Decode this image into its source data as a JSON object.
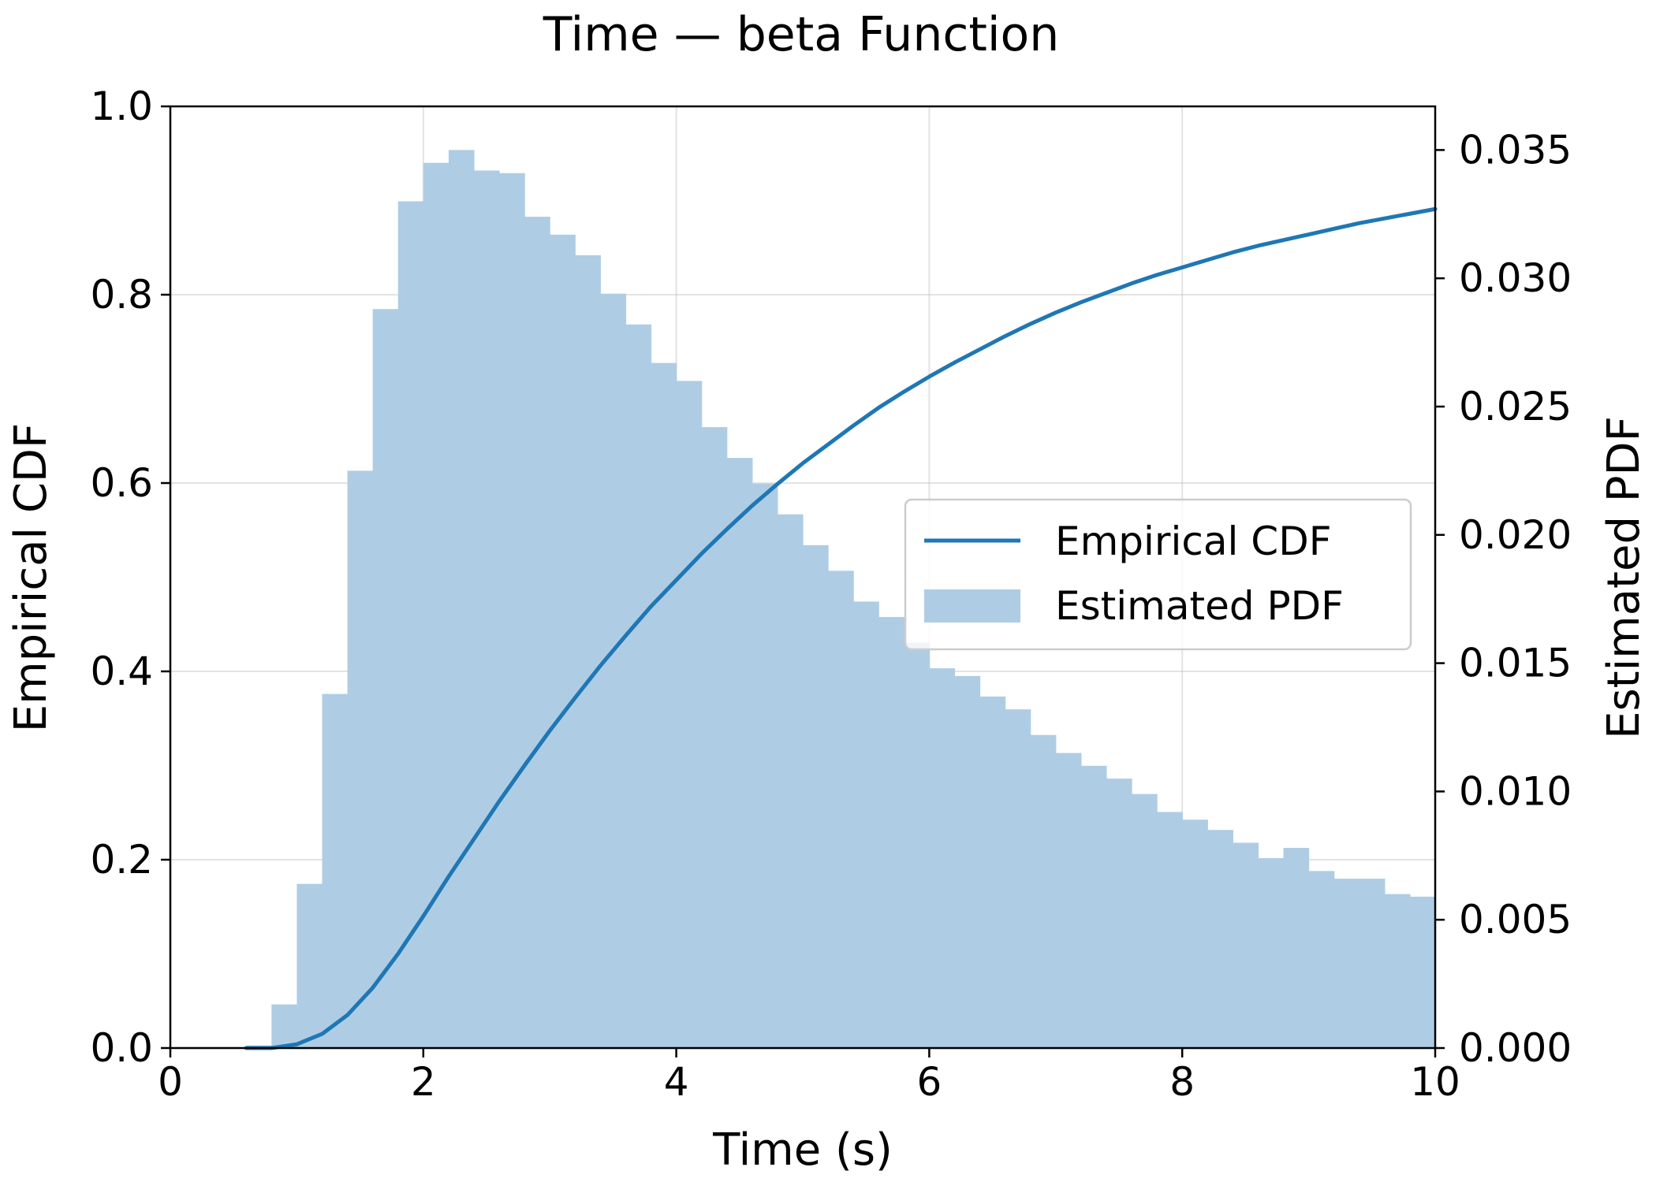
{
  "chart_data": {
    "type": "histogram+line",
    "title": "Time — beta Function",
    "xlabel": "Time (s)",
    "ylabel_left": "Empirical CDF",
    "ylabel_right": "Estimated PDF",
    "xlim": [
      0,
      10
    ],
    "ylim_left": [
      0,
      1.0
    ],
    "ylim_right": [
      0,
      0.0367
    ],
    "xticks": [
      0,
      2,
      4,
      6,
      8,
      10
    ],
    "xtick_labels": [
      "0",
      "2",
      "4",
      "6",
      "8",
      "10"
    ],
    "yticks_left": [
      0.0,
      0.2,
      0.4,
      0.6,
      0.8,
      1.0
    ],
    "ytick_labels_left": [
      "0.0",
      "0.2",
      "0.4",
      "0.6",
      "0.8",
      "1.0"
    ],
    "yticks_right": [
      0.0,
      0.005,
      0.01,
      0.015,
      0.02,
      0.025,
      0.03,
      0.035
    ],
    "ytick_labels_right": [
      "0.000",
      "0.005",
      "0.010",
      "0.015",
      "0.020",
      "0.025",
      "0.030",
      "0.035"
    ],
    "grid": true,
    "legend_position": "center-right",
    "legend": [
      {
        "label": "Empirical CDF",
        "kind": "line",
        "color": "#1f77b4"
      },
      {
        "label": "Estimated PDF",
        "kind": "patch",
        "color": "#aecde4"
      }
    ],
    "line_color": "#1f77b4",
    "bar_color": "#aecde4",
    "histogram": {
      "bin_start": 0.6,
      "bin_width": 0.2,
      "values": [
        0.0001,
        0.0017,
        0.0064,
        0.0138,
        0.0225,
        0.0288,
        0.033,
        0.0345,
        0.035,
        0.0342,
        0.0341,
        0.0324,
        0.0317,
        0.0309,
        0.0294,
        0.0282,
        0.0267,
        0.026,
        0.0242,
        0.023,
        0.022,
        0.0208,
        0.0196,
        0.0186,
        0.0174,
        0.0168,
        0.0158,
        0.0148,
        0.0145,
        0.0137,
        0.0132,
        0.0122,
        0.0115,
        0.011,
        0.0105,
        0.0099,
        0.0092,
        0.0089,
        0.0085,
        0.008,
        0.0074,
        0.0078,
        0.0069,
        0.0066,
        0.0066,
        0.006,
        0.0059
      ]
    },
    "cdf": {
      "x": [
        0.6,
        0.8,
        1.0,
        1.2,
        1.4,
        1.6,
        1.8,
        2.0,
        2.2,
        2.4,
        2.6,
        2.8,
        3.0,
        3.2,
        3.4,
        3.6,
        3.8,
        4.0,
        4.2,
        4.4,
        4.6,
        4.8,
        5.0,
        5.2,
        5.4,
        5.6,
        5.8,
        6.0,
        6.2,
        6.4,
        6.6,
        6.8,
        7.0,
        7.2,
        7.4,
        7.6,
        7.8,
        8.0,
        8.2,
        8.4,
        8.6,
        8.8,
        9.0,
        9.2,
        9.4,
        9.6,
        9.8,
        10.0
      ],
      "y": [
        0.0,
        0.0,
        0.004,
        0.015,
        0.035,
        0.064,
        0.1,
        0.14,
        0.182,
        0.222,
        0.262,
        0.3,
        0.337,
        0.372,
        0.406,
        0.438,
        0.469,
        0.497,
        0.525,
        0.551,
        0.576,
        0.599,
        0.621,
        0.641,
        0.661,
        0.68,
        0.697,
        0.713,
        0.728,
        0.742,
        0.756,
        0.769,
        0.781,
        0.792,
        0.802,
        0.812,
        0.821,
        0.829,
        0.837,
        0.845,
        0.852,
        0.858,
        0.864,
        0.87,
        0.876,
        0.881,
        0.886,
        0.891
      ]
    }
  }
}
